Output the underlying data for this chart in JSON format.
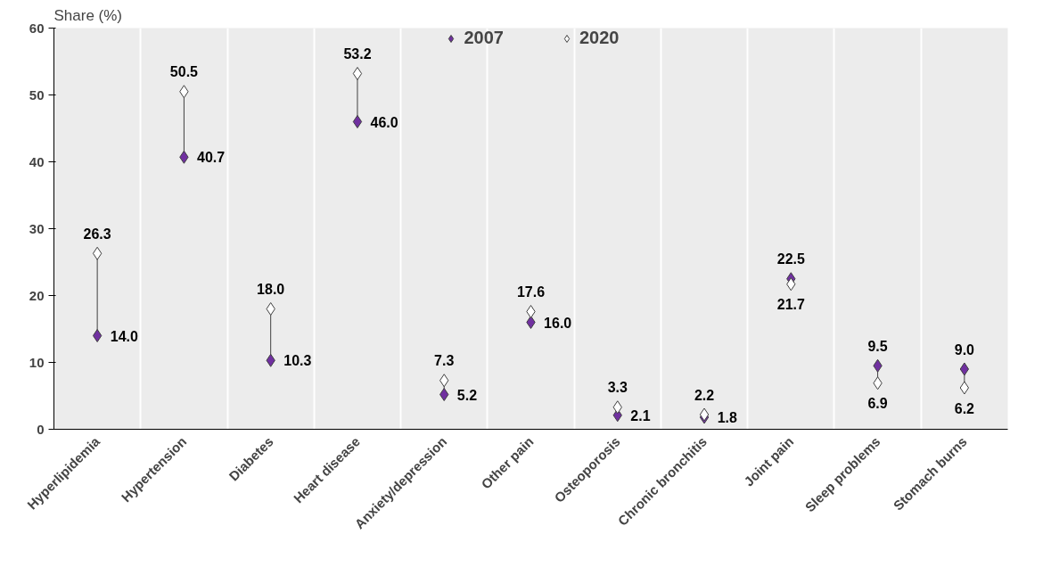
{
  "chart_data": {
    "type": "scatter",
    "ylabel": "Share (%)",
    "categories": [
      "Hyperlipidemia",
      "Hypertension",
      "Diabetes",
      "Heart disease",
      "Anxiety/depression",
      "Other pain",
      "Osteoporosis",
      "Chronic bronchitis",
      "Joint pain",
      "Sleep problems",
      "Stomach burns"
    ],
    "series": [
      {
        "name": "2007",
        "color": "#7030a0",
        "values": [
          14.0,
          40.7,
          10.3,
          46.0,
          5.2,
          16.0,
          2.1,
          1.8,
          22.5,
          9.5,
          9.0
        ],
        "value_labels": [
          "14.0",
          "40.7",
          "10.3",
          "46.0",
          "5.2",
          "16.0",
          "2.1",
          "1.8",
          "22.5",
          "9.5",
          "9.0"
        ]
      },
      {
        "name": "2020",
        "color": "#ffffff",
        "values": [
          26.3,
          50.5,
          18.0,
          53.2,
          7.3,
          17.6,
          3.3,
          2.2,
          21.7,
          6.9,
          6.2
        ],
        "value_labels": [
          "26.3",
          "50.5",
          "18.0",
          "53.2",
          "7.3",
          "17.6",
          "3.3",
          "2.2",
          "21.7",
          "6.9",
          "6.2"
        ]
      }
    ],
    "ylim": [
      0,
      60
    ],
    "yticks": [
      0,
      10,
      20,
      30,
      40,
      50,
      60
    ],
    "marker": "diamond",
    "grid": "x",
    "legend": "top"
  }
}
